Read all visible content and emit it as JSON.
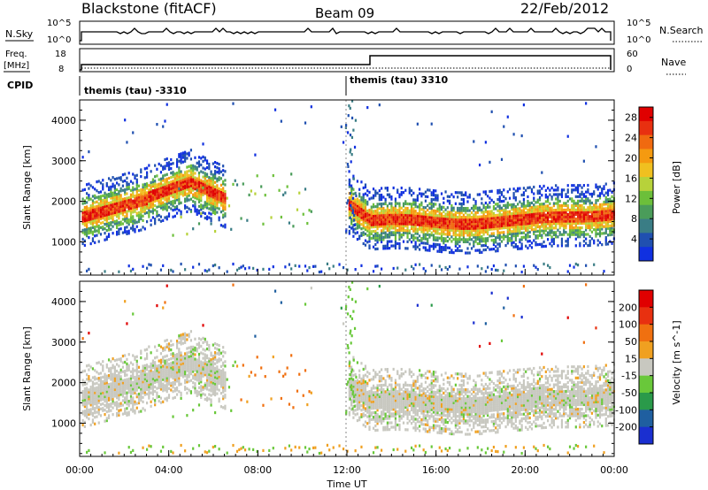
{
  "header": {
    "station": "Blackstone (fitACF)",
    "beam": "Beam 09",
    "date": "22/Feb/2012"
  },
  "status_panel": {
    "left_label": "N.Sky",
    "right_label": "N.Search",
    "left_ticks": [
      "10^5",
      "10^0"
    ],
    "right_ticks": [
      "10^5",
      "10^0"
    ]
  },
  "freq_panel": {
    "left_label_line1": "Freq.",
    "left_label_line2": "[MHz]",
    "right_label": "Nave",
    "left_ticks": [
      "18",
      "8"
    ],
    "right_ticks": [
      "60",
      "0"
    ]
  },
  "cpid": {
    "label": "CPID",
    "segments": [
      {
        "name": "themis (tau) -3310",
        "start_hour": 0
      },
      {
        "name": "themis (tau) 3310",
        "start_hour": 12.0
      }
    ]
  },
  "axes": {
    "x_label": "Time UT",
    "y_label": "Slant Range [km]",
    "x_ticks": [
      "00:00",
      "04:00",
      "08:00",
      "12:00",
      "16:00",
      "20:00",
      "00:00"
    ],
    "y_ticks": [
      "1000",
      "2000",
      "3000",
      "4000"
    ]
  },
  "chart_data": [
    {
      "type": "heatmap",
      "title": "",
      "xlabel": "Time UT",
      "ylabel": "Slant Range [km]",
      "xlim": [
        0,
        24
      ],
      "ylim": [
        180,
        4500
      ],
      "colorbar": {
        "label": "Power [dB]",
        "ticks": [
          "4",
          "8",
          "12",
          "16",
          "20",
          "24",
          "28"
        ],
        "range": [
          0,
          30
        ],
        "colors": [
          "#1030e0",
          "#2050b0",
          "#3a7d85",
          "#4a9c5a",
          "#6cbf3a",
          "#b7d23a",
          "#f0c020",
          "#f59a10",
          "#f06a10",
          "#e83010",
          "#e00000"
        ]
      }
    },
    {
      "type": "heatmap",
      "title": "",
      "xlabel": "Time UT",
      "ylabel": "Slant Range [km]",
      "xlim": [
        0,
        24
      ],
      "ylim": [
        180,
        4500
      ],
      "colorbar": {
        "label": "Velocity [m s^-1]",
        "ticks": [
          "200",
          "100",
          "50",
          "15",
          "-15",
          "-50",
          "-100",
          "-200"
        ],
        "colors": [
          "#1a2fd0",
          "#1f5fa0",
          "#2a9a4a",
          "#69c83a",
          "#c8c8c0",
          "#f0a020",
          "#f07010",
          "#e83010",
          "#e00000"
        ]
      }
    }
  ]
}
